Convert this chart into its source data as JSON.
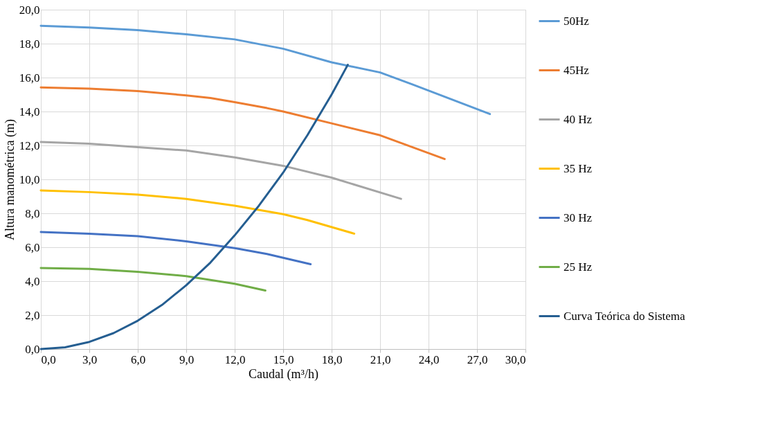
{
  "chart_data": {
    "type": "line",
    "xlabel": "Caudal (m³/h)",
    "ylabel": "Altura manométrica (m)",
    "xlim": [
      0,
      30
    ],
    "ylim": [
      0,
      20
    ],
    "xticks": [
      {
        "value": 0,
        "label": "0,0"
      },
      {
        "value": 3,
        "label": "3,0"
      },
      {
        "value": 6,
        "label": "6,0"
      },
      {
        "value": 9,
        "label": "9,0"
      },
      {
        "value": 12,
        "label": "12,0"
      },
      {
        "value": 15,
        "label": "15,0"
      },
      {
        "value": 18,
        "label": "18,0"
      },
      {
        "value": 21,
        "label": "21,0"
      },
      {
        "value": 24,
        "label": "24,0"
      },
      {
        "value": 27,
        "label": "27,0"
      },
      {
        "value": 30,
        "label": "30,0"
      }
    ],
    "yticks": [
      {
        "value": 0,
        "label": "0,0"
      },
      {
        "value": 2,
        "label": "2,0"
      },
      {
        "value": 4,
        "label": "4,0"
      },
      {
        "value": 6,
        "label": "6,0"
      },
      {
        "value": 8,
        "label": "8,0"
      },
      {
        "value": 10,
        "label": "10,0"
      },
      {
        "value": 12,
        "label": "12,0"
      },
      {
        "value": 14,
        "label": "14,0"
      },
      {
        "value": 16,
        "label": "16,0"
      },
      {
        "value": 18,
        "label": "18,0"
      },
      {
        "value": 20,
        "label": "20,0"
      }
    ],
    "grid": true,
    "legend": "right",
    "marker": "none",
    "line_style": "solid",
    "series": [
      {
        "name": "50Hz",
        "color": "#5b9bd5",
        "x": [
          0,
          3,
          6,
          9,
          12,
          15,
          18,
          21,
          23,
          27.8
        ],
        "values": [
          19.05,
          18.95,
          18.8,
          18.55,
          18.25,
          17.7,
          16.9,
          16.3,
          15.6,
          13.85
        ]
      },
      {
        "name": "45Hz",
        "color": "#ed7d31",
        "x": [
          0,
          3,
          6,
          9,
          10.5,
          12,
          14,
          15,
          18,
          21,
          25
        ],
        "values": [
          15.42,
          15.35,
          15.2,
          14.95,
          14.8,
          14.55,
          14.2,
          14.0,
          13.3,
          12.6,
          11.2
        ]
      },
      {
        "name": "40 Hz",
        "color": "#a5a5a5",
        "x": [
          0,
          3,
          6,
          9,
          12,
          15,
          18,
          22.3
        ],
        "values": [
          12.2,
          12.1,
          11.9,
          11.7,
          11.3,
          10.8,
          10.1,
          8.85
        ]
      },
      {
        "name": "35 Hz",
        "color": "#ffc000",
        "x": [
          0,
          3,
          6,
          9,
          12,
          15,
          16.5,
          19.4
        ],
        "values": [
          9.35,
          9.25,
          9.1,
          8.85,
          8.45,
          7.95,
          7.6,
          6.8
        ]
      },
      {
        "name": "30 Hz",
        "color": "#4472c4",
        "x": [
          0,
          3,
          6,
          9,
          12,
          14,
          16.7
        ],
        "values": [
          6.9,
          6.8,
          6.65,
          6.35,
          5.95,
          5.6,
          5.0
        ]
      },
      {
        "name": "25 Hz",
        "color": "#70ad47",
        "x": [
          0,
          3,
          6,
          9,
          12,
          13.9
        ],
        "values": [
          4.78,
          4.72,
          4.55,
          4.3,
          3.85,
          3.45
        ]
      },
      {
        "name": "Curva Teórica do Sistema",
        "color": "#255e91",
        "x": [
          0,
          1.5,
          3,
          4.5,
          6,
          7.5,
          9,
          10.5,
          12,
          13.5,
          15,
          16.5,
          18,
          19.0
        ],
        "values": [
          0,
          0.1,
          0.42,
          0.94,
          1.67,
          2.6,
          3.76,
          5.1,
          6.7,
          8.45,
          10.4,
          12.6,
          15.0,
          16.75
        ]
      }
    ]
  }
}
